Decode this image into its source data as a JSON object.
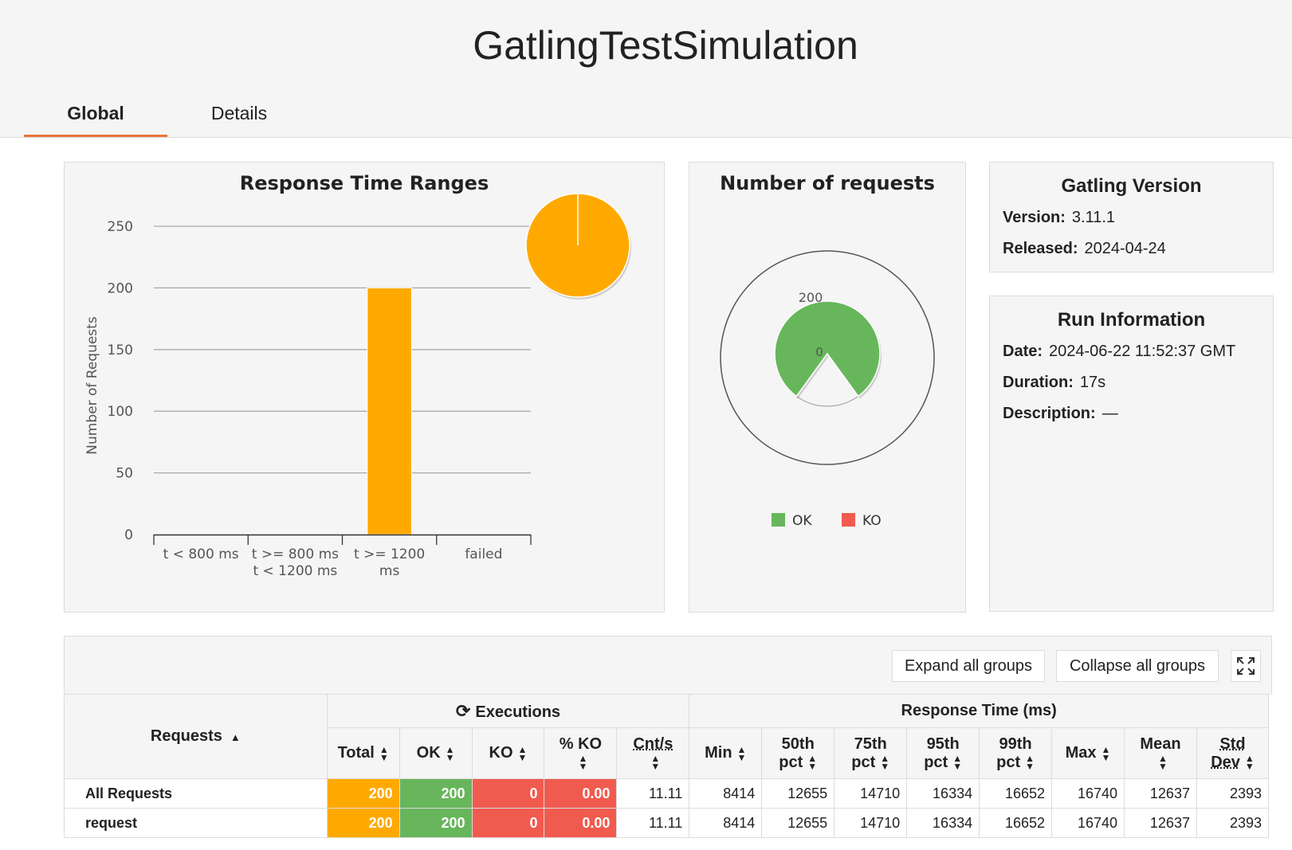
{
  "header": {
    "title": "GatlingTestSimulation"
  },
  "tabs": [
    {
      "label": "Global",
      "active": true
    },
    {
      "label": "Details",
      "active": false
    }
  ],
  "colors": {
    "accent": "#e8773c",
    "orange": "#ffa900",
    "green": "#68b65c",
    "red": "#f15b4f"
  },
  "chart_data": [
    {
      "type": "bar",
      "title": "Response Time Ranges",
      "ylabel": "Number of Requests",
      "xlabel": "",
      "categories": [
        [
          "t < 800 ms"
        ],
        [
          "t >= 800 ms",
          "t < 1200 ms"
        ],
        [
          "t >= 1200",
          "ms"
        ],
        [
          "failed"
        ]
      ],
      "values": [
        0,
        0,
        200,
        0
      ],
      "ylim": [
        0,
        250
      ],
      "yticks": [
        0,
        50,
        100,
        150,
        200,
        250
      ],
      "grid": true,
      "bar_color": "#ffa900",
      "inset_pie": {
        "slices": [
          {
            "label": "t >= 1200 ms",
            "value": 200,
            "color": "#ffa900"
          }
        ]
      }
    },
    {
      "type": "pie",
      "title": "Number of requests",
      "series": [
        {
          "name": "OK",
          "value": 200,
          "color": "#68b65c"
        },
        {
          "name": "KO",
          "value": 0,
          "color": "#f15b4f"
        }
      ],
      "scale_labels": [
        "200",
        "0"
      ],
      "legend": [
        "OK",
        "KO"
      ]
    }
  ],
  "gatling": {
    "title": "Gatling Version",
    "version_label": "Version:",
    "version": "3.11.1",
    "released_label": "Released:",
    "released": "2024-04-24"
  },
  "run": {
    "title": "Run Information",
    "date_label": "Date:",
    "date": "2024-06-22 11:52:37 GMT",
    "duration_label": "Duration:",
    "duration": "17s",
    "description_label": "Description:",
    "description": "—"
  },
  "buttons": {
    "expand": "Expand all groups",
    "collapse": "Collapse all groups"
  },
  "table": {
    "requests_header": "Requests",
    "executions_header": "Executions",
    "response_header": "Response Time (ms)",
    "cols": {
      "total": "Total",
      "ok": "OK",
      "ko": "KO",
      "pct_ko": "% KO",
      "cnt": "Cnt/s",
      "min": "Min",
      "p50a": "50th",
      "p50b": "pct",
      "p75a": "75th",
      "p75b": "pct",
      "p95a": "95th",
      "p95b": "pct",
      "p99a": "99th",
      "p99b": "pct",
      "max": "Max",
      "mean": "Mean",
      "stda": "Std",
      "stdb": "Dev"
    },
    "rows": [
      {
        "name": "All Requests",
        "total": "200",
        "ok": "200",
        "ko": "0",
        "pct_ko": "0.00",
        "cnt": "11.11",
        "min": "8414",
        "p50": "12655",
        "p75": "14710",
        "p95": "16334",
        "p99": "16652",
        "max": "16740",
        "mean": "12637",
        "std": "2393"
      },
      {
        "name": "request",
        "total": "200",
        "ok": "200",
        "ko": "0",
        "pct_ko": "0.00",
        "cnt": "11.11",
        "min": "8414",
        "p50": "12655",
        "p75": "14710",
        "p95": "16334",
        "p99": "16652",
        "max": "16740",
        "mean": "12637",
        "std": "2393"
      }
    ]
  }
}
